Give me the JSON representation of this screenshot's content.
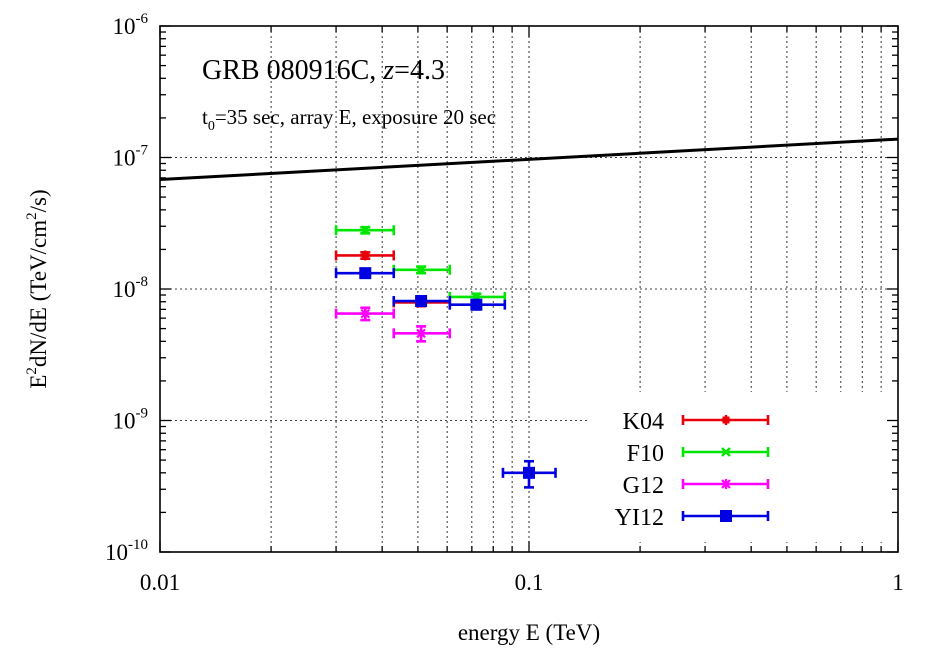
{
  "chart_data": {
    "type": "scatter",
    "title_prefix": "GRB 080916C, ",
    "title_z": "z",
    "title_suffix": "=4.3",
    "subtitle_t": "t",
    "subtitle_sub": "0",
    "subtitle_rest": "=35 sec, array E, exposure 20 sec",
    "xlabel": "energy E (TeV)",
    "ylabel": {
      "part1": "E",
      "sup1": "2",
      "part2": "dN/dE (TeV/cm",
      "sup2": "2",
      "part3": "/s)"
    },
    "xscale": "log",
    "yscale": "log",
    "xlim": [
      0.01,
      1
    ],
    "ylim": [
      1e-10,
      1e-06
    ],
    "grid": true,
    "legend_position": "bottom-right",
    "x_ticks": [
      {
        "value": 0.01,
        "label": "0.01"
      },
      {
        "value": 0.1,
        "label": "0.1"
      },
      {
        "value": 1,
        "label": "1"
      }
    ],
    "y_ticks": [
      {
        "value": 1e-10,
        "base": "10",
        "exp": "-10"
      },
      {
        "value": 1e-09,
        "base": "10",
        "exp": "-9"
      },
      {
        "value": 1e-08,
        "base": "10",
        "exp": "-8"
      },
      {
        "value": 1e-07,
        "base": "10",
        "exp": "-7"
      },
      {
        "value": 1e-06,
        "base": "10",
        "exp": "-6"
      }
    ],
    "model_line": {
      "color": "#000000",
      "points": [
        [
          0.01,
          6.8e-08
        ],
        [
          1,
          1.38e-07
        ]
      ]
    },
    "series": [
      {
        "name": "K04",
        "color": "#e8000b",
        "marker": "plus",
        "points": [
          {
            "x": 0.036,
            "y": 1.8e-08,
            "xlo": 0.03,
            "xhi": 0.043,
            "ylo": 1.7e-08,
            "yhi": 1.9e-08
          },
          {
            "x": 0.051,
            "y": 7.9e-09,
            "xlo": 0.043,
            "xhi": 0.061,
            "ylo": 7.4e-09,
            "yhi": 8.4e-09
          }
        ]
      },
      {
        "name": "F10",
        "color": "#00e600",
        "marker": "cross",
        "points": [
          {
            "x": 0.036,
            "y": 2.8e-08,
            "xlo": 0.03,
            "xhi": 0.043,
            "ylo": 2.65e-08,
            "yhi": 2.95e-08
          },
          {
            "x": 0.051,
            "y": 1.4e-08,
            "xlo": 0.043,
            "xhi": 0.061,
            "ylo": 1.32e-08,
            "yhi": 1.48e-08
          },
          {
            "x": 0.072,
            "y": 8.7e-09,
            "xlo": 0.061,
            "xhi": 0.086,
            "ylo": 8.2e-09,
            "yhi": 9.2e-09
          }
        ]
      },
      {
        "name": "G12",
        "color": "#ff00ff",
        "marker": "star",
        "points": [
          {
            "x": 0.036,
            "y": 6.5e-09,
            "xlo": 0.03,
            "xhi": 0.043,
            "ylo": 5.8e-09,
            "yhi": 7.2e-09
          },
          {
            "x": 0.051,
            "y": 4.6e-09,
            "xlo": 0.043,
            "xhi": 0.061,
            "ylo": 4e-09,
            "yhi": 5.2e-09
          }
        ]
      },
      {
        "name": "YI12",
        "color": "#0000e0",
        "marker": "square",
        "points": [
          {
            "x": 0.036,
            "y": 1.32e-08,
            "xlo": 0.03,
            "xhi": 0.043,
            "ylo": 1.22e-08,
            "yhi": 1.42e-08
          },
          {
            "x": 0.051,
            "y": 8.1e-09,
            "xlo": 0.043,
            "xhi": 0.061,
            "ylo": 7.5e-09,
            "yhi": 8.8e-09
          },
          {
            "x": 0.072,
            "y": 7.6e-09,
            "xlo": 0.061,
            "xhi": 0.086,
            "ylo": 7e-09,
            "yhi": 8.2e-09
          },
          {
            "x": 0.1,
            "y": 4e-10,
            "xlo": 0.085,
            "xhi": 0.118,
            "ylo": 3.1e-10,
            "yhi": 4.9e-10
          }
        ]
      }
    ]
  }
}
